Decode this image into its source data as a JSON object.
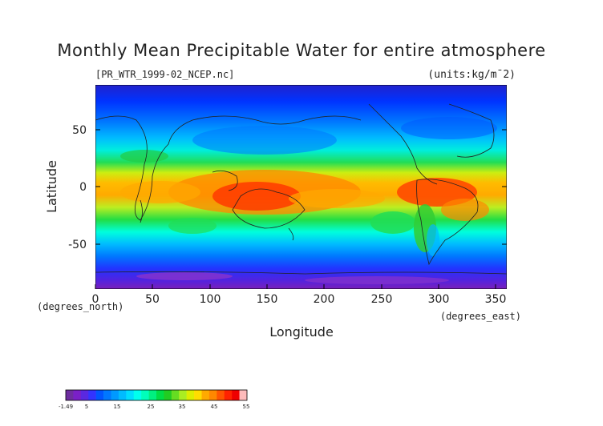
{
  "title": "Monthly Mean Precipitable Water for entire atmosphere",
  "file_label": "[PR_WTR_1999-02_NCEP.nc]",
  "units_label": "(units:kg/m¯2)",
  "y_axis": {
    "label": "Latitude",
    "unit_label": "(degrees_north)",
    "ticks": [
      "50",
      "0",
      "-50"
    ]
  },
  "x_axis": {
    "label": "Longitude",
    "unit_label": "(degrees_east)",
    "ticks": [
      "0",
      "50",
      "100",
      "150",
      "200",
      "250",
      "300",
      "350"
    ]
  },
  "colorbar": {
    "tick_labels": [
      "-1.49",
      "5",
      "15",
      "25",
      "35",
      "45",
      "55"
    ],
    "min": -1.49,
    "max": 55,
    "colors": [
      "#6e2ea0",
      "#7a20c8",
      "#5a28e0",
      "#3333ff",
      "#0055ff",
      "#0077ff",
      "#0099ff",
      "#00bbff",
      "#00ddff",
      "#00ffee",
      "#00ffbb",
      "#00f080",
      "#00dd44",
      "#22cc22",
      "#66dd22",
      "#aaee22",
      "#ddee00",
      "#ffdd00",
      "#ffaa00",
      "#ff8800",
      "#ff5500",
      "#ff2200",
      "#ee0000",
      "#ffbbbb"
    ]
  },
  "map": {
    "projection": "equirectangular",
    "lon_range": [
      0,
      360
    ],
    "lat_range": [
      -90,
      90
    ],
    "field": "precipitable water",
    "period": "1999-02"
  }
}
